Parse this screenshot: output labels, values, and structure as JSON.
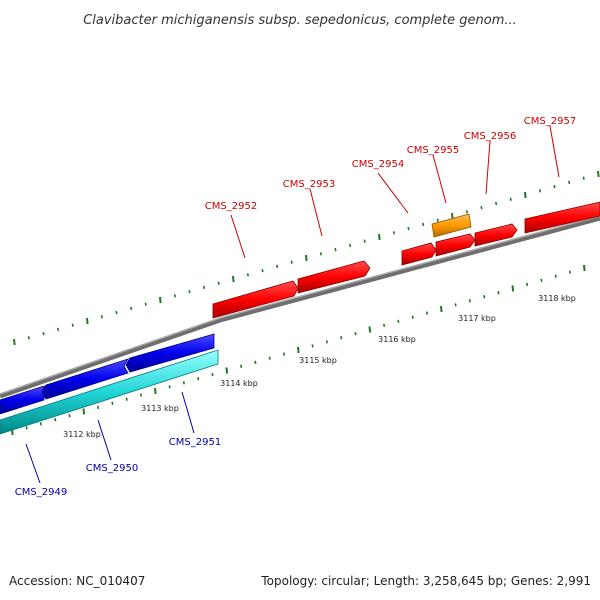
{
  "title": "Clavibacter michiganensis subsp. sepedonicus, complete genom...",
  "footer": {
    "accession": "Accession: NC_010407",
    "summary": "Topology: circular; Length: 3,258,645 bp; Genes: 2,991"
  },
  "colors": {
    "forward_gene": "#ff0000",
    "reverse_gene": "#0000ff",
    "highlight_gene": "#ff9900",
    "reverse_cds": "#00cccc",
    "backbone": "#888888",
    "tick": "#227722",
    "forward_label": "#cc0000",
    "reverse_label": "#0000aa"
  },
  "scale": {
    "labels": [
      "3112 kbp",
      "3113 kbp",
      "3114 kbp",
      "3115 kbp",
      "3116 kbp",
      "3117 kbp",
      "3118 kbp"
    ]
  },
  "genes": {
    "forward": [
      {
        "label": "CMS_2952",
        "strand": "+"
      },
      {
        "label": "CMS_2953",
        "strand": "+"
      },
      {
        "label": "CMS_2954",
        "strand": "+"
      },
      {
        "label": "CMS_2955",
        "strand": "+"
      },
      {
        "label": "CMS_2956",
        "strand": "+"
      },
      {
        "label": "CMS_2957",
        "strand": "+"
      }
    ],
    "reverse": [
      {
        "label": "CMS_2949",
        "strand": "-"
      },
      {
        "label": "CMS_2950",
        "strand": "-"
      },
      {
        "label": "CMS_2951",
        "strand": "-"
      }
    ]
  }
}
